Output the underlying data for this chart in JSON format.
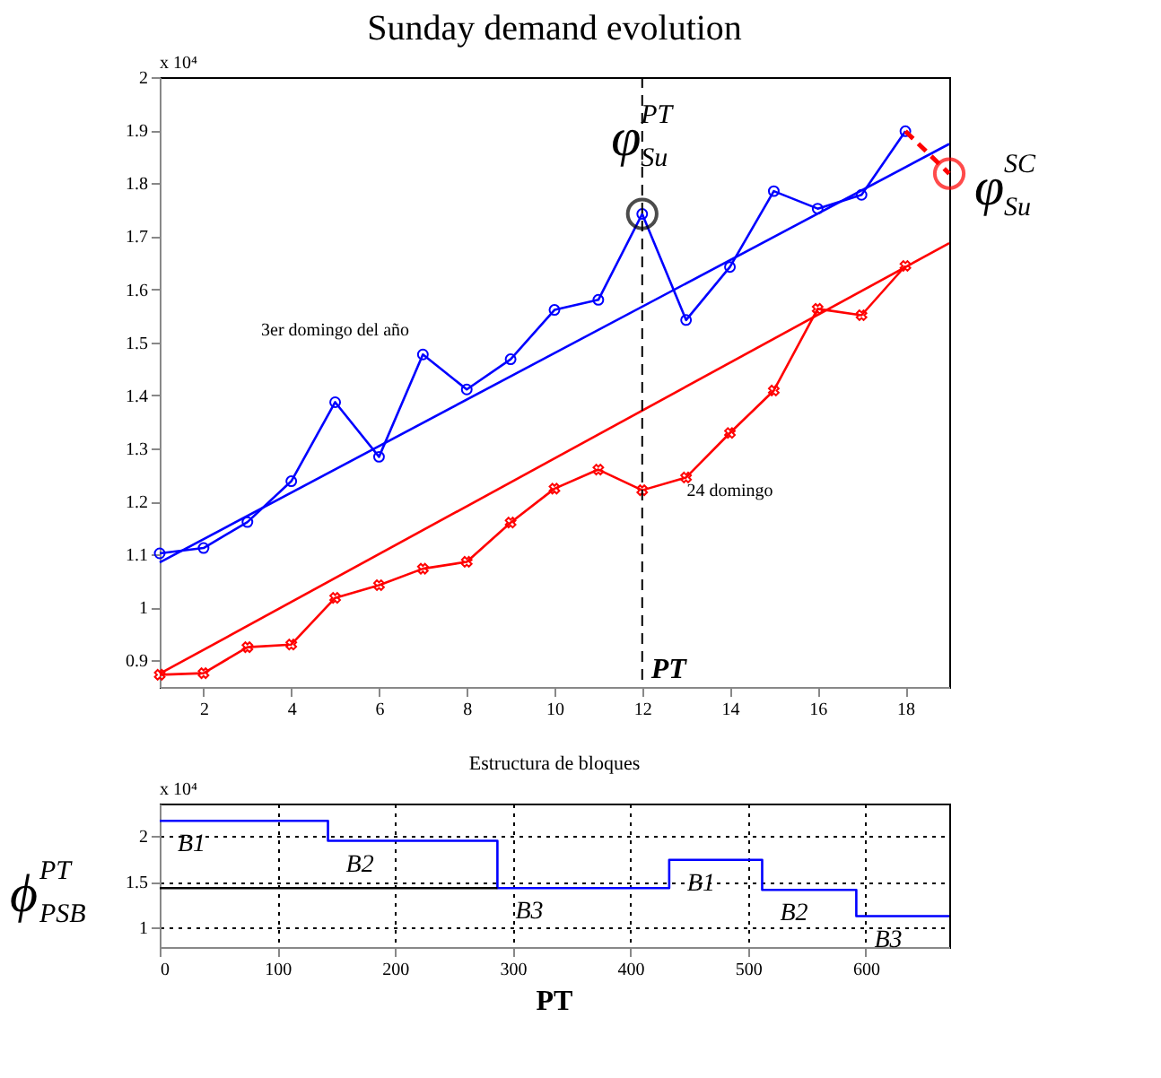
{
  "chart_data": [
    {
      "type": "line",
      "title": "Sunday demand evolution",
      "xlim": [
        1,
        19
      ],
      "xticks": [
        2,
        4,
        6,
        8,
        10,
        12,
        14,
        16,
        18
      ],
      "ylim": [
        0.85,
        2
      ],
      "yticks": [
        0.9,
        1,
        1.1,
        1.2,
        1.3,
        1.4,
        1.5,
        1.6,
        1.7,
        1.8,
        1.9,
        2
      ],
      "grid": false,
      "series": [
        {
          "name": "3er domingo del año",
          "color": "#0000ff",
          "marker": "circle",
          "x": [
            1,
            2,
            3,
            4,
            5,
            6,
            7,
            8,
            9,
            10,
            11,
            12,
            13,
            14,
            15,
            16,
            17,
            18
          ],
          "values": [
            1.102,
            1.112,
            1.161,
            1.238,
            1.387,
            1.284,
            1.477,
            1.411,
            1.468,
            1.561,
            1.58,
            1.742,
            1.542,
            1.642,
            1.785,
            1.752,
            1.778,
            1.898
          ]
        },
        {
          "color": "#0000ff",
          "x": [
            1,
            19
          ],
          "values": [
            1.085,
            1.874
          ]
        },
        {
          "name": "24 domingo",
          "color": "#ff0000",
          "marker": "cross",
          "x": [
            1,
            2,
            3,
            4,
            5,
            6,
            7,
            8,
            9,
            10,
            11,
            12,
            13,
            14,
            15,
            16,
            17,
            18
          ],
          "values": [
            0.873,
            0.876,
            0.925,
            0.93,
            1.018,
            1.042,
            1.073,
            1.086,
            1.16,
            1.224,
            1.26,
            1.221,
            1.245,
            1.329,
            1.409,
            1.563,
            1.551,
            1.644
          ]
        },
        {
          "color": "#ff0000",
          "x": [
            1,
            19
          ],
          "values": [
            0.875,
            1.687
          ]
        },
        {
          "color": "#ff0000",
          "line_style": "dashed",
          "x": [
            18,
            19
          ],
          "values": [
            1.898,
            1.818
          ]
        }
      ],
      "ref_lines": [
        {
          "axis": "x",
          "value": 12,
          "label": "PT",
          "color": "#000000",
          "line_style": "dashed"
        }
      ],
      "annotations": [
        "x 10⁴",
        {
          "text": "φ$^{PT}$$_{Su}$",
          "x": 12,
          "y": 1.742
        },
        {
          "text": "φ$^{SC}$$_{Su}$",
          "x": 19,
          "y": 1.818
        }
      ]
    },
    {
      "type": "step",
      "title": "Estructura de bloques",
      "xlabel": "PT",
      "xlim": [
        0,
        671
      ],
      "xticks": [
        0,
        100,
        200,
        300,
        400,
        500,
        600
      ],
      "ylim": [
        0.78,
        2.36
      ],
      "yticks": [
        1,
        1.5,
        2
      ],
      "grid": true,
      "series": [
        {
          "color": "#0000ff",
          "x": [
            0,
            143,
            287,
            433,
            512,
            592,
            671
          ],
          "values": [
            2.17,
            1.95,
            1.43,
            1.74,
            1.41,
            1.12,
            1.12
          ],
          "value_labels": [
            "B1",
            "B2",
            "B3",
            "B1",
            "B2",
            "B3",
            null
          ]
        },
        {
          "type": "line",
          "color": "#000000",
          "x": [
            0,
            287
          ],
          "values": [
            1.43,
            1.43
          ]
        }
      ],
      "annotations": [
        "x 10⁴",
        {
          "text": "ϕ$^{PT}$$_{PSB}$",
          "x": 0,
          "y": 1.43
        }
      ]
    }
  ]
}
